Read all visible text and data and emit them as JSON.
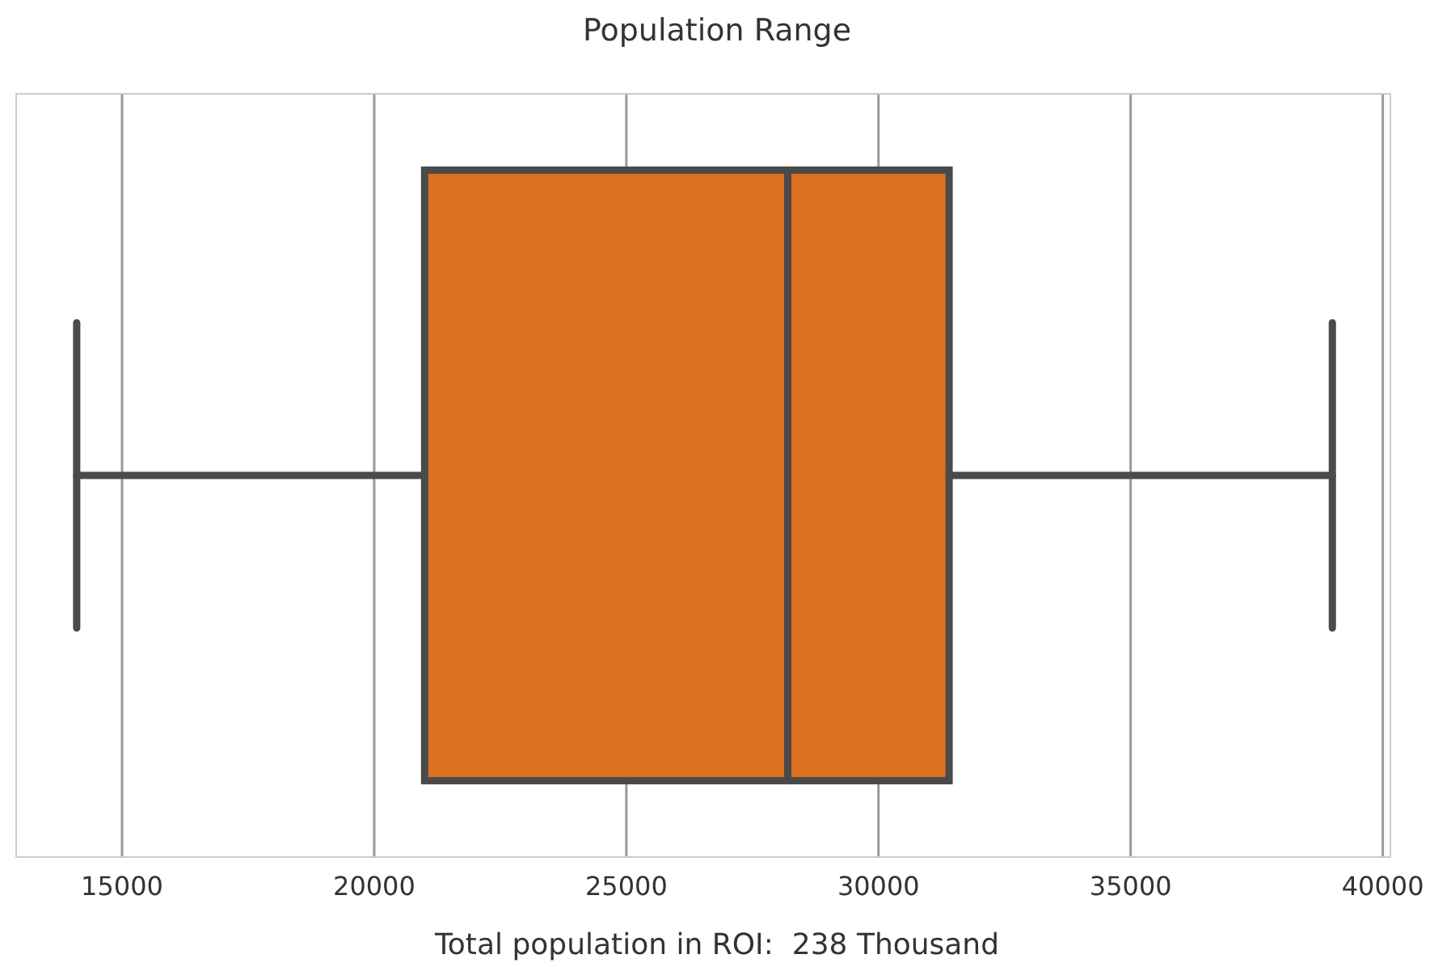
{
  "chart_data": {
    "type": "box",
    "title": "Population Range",
    "xlabel": "Total population in ROI:  238 Thousand",
    "orientation": "horizontal",
    "categories": [
      null
    ],
    "boxes": [
      {
        "low": 14100,
        "q1": 21000,
        "median": 28200,
        "q3": 31400,
        "high": 39000
      }
    ],
    "color": "#dd7020",
    "xlim": [
      12900,
      40150
    ],
    "xticks": [
      15000,
      20000,
      25000,
      30000,
      35000,
      40000
    ],
    "grid": "x"
  }
}
